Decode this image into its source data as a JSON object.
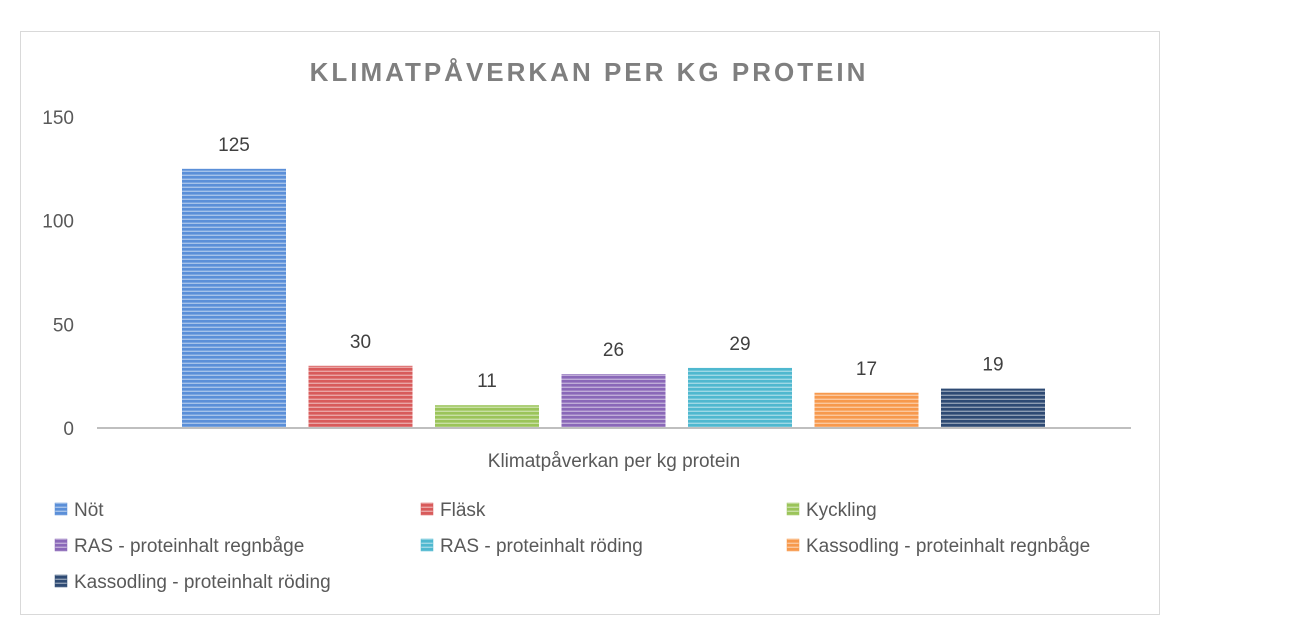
{
  "chart_data": {
    "type": "bar",
    "title": "KLIMATPÅVERKAN PER KG PROTEIN",
    "xlabel": "Klimatpåverkan per kg protein",
    "ylabel": "",
    "ylim": [
      0,
      150
    ],
    "yticks": [
      "0",
      "50",
      "100",
      "150"
    ],
    "categories": [
      "Klimatpåverkan per kg protein"
    ],
    "grid": false,
    "legend_position": "bottom",
    "series": [
      {
        "name": "Nöt",
        "values": [
          125
        ],
        "label": "125",
        "color": "#5b8fd8"
      },
      {
        "name": "Fläsk",
        "values": [
          30
        ],
        "label": "30",
        "color": "#d85b5b"
      },
      {
        "name": "Kyckling",
        "values": [
          11
        ],
        "label": "11",
        "color": "#9bc45a"
      },
      {
        "name": "RAS - proteinhalt regnbåge",
        "values": [
          26
        ],
        "label": "26",
        "color": "#8a68b8"
      },
      {
        "name": "RAS - proteinhalt röding",
        "values": [
          29
        ],
        "label": "29",
        "color": "#4fb8cf"
      },
      {
        "name": "Kassodling - proteinhalt regnbåge",
        "values": [
          17
        ],
        "label": "17",
        "color": "#f7994d"
      },
      {
        "name": "Kassodling - proteinhalt röding",
        "values": [
          19
        ],
        "label": "19",
        "color": "#2e4a73"
      }
    ]
  }
}
